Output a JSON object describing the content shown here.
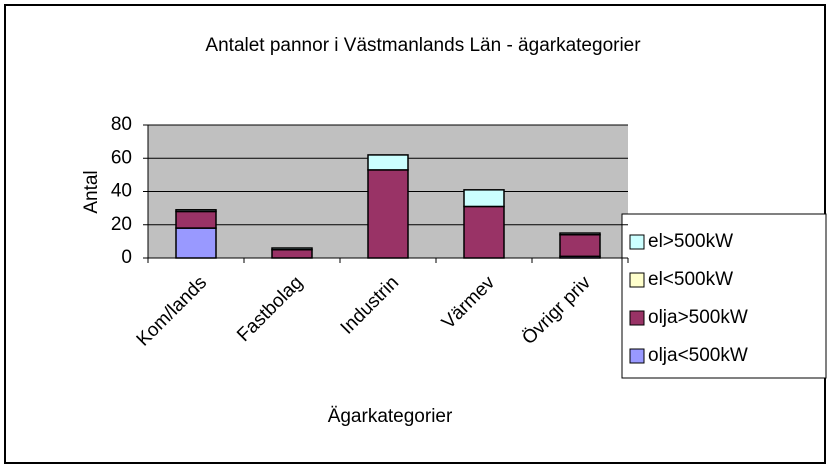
{
  "chart_data": {
    "type": "stacked_bar",
    "title": "Antalet pannor i Västmanlands Län - ägarkategorier",
    "x_label": "Ägarkategorier",
    "y_label": "Antal",
    "categories": [
      "Kom/lands",
      "Fastbolag",
      "Industrin",
      "Värmev",
      "Övrigr priv"
    ],
    "series": [
      {
        "name": "olja<500kW",
        "color": "#9999ff",
        "values": [
          18,
          0,
          0,
          0,
          1
        ]
      },
      {
        "name": "olja>500kW",
        "color": "#993366",
        "values": [
          10,
          5,
          53,
          31,
          13
        ]
      },
      {
        "name": "el<500kW",
        "color": "#ffffcc",
        "values": [
          0,
          0,
          0,
          0,
          0
        ]
      },
      {
        "name": "el>500kW",
        "color": "#ccffff",
        "values": [
          1,
          1,
          9,
          10,
          1
        ]
      }
    ],
    "ylim": [
      0,
      80
    ],
    "yticks": [
      0,
      20,
      40,
      60,
      80
    ],
    "grid": true,
    "legend": "right"
  }
}
